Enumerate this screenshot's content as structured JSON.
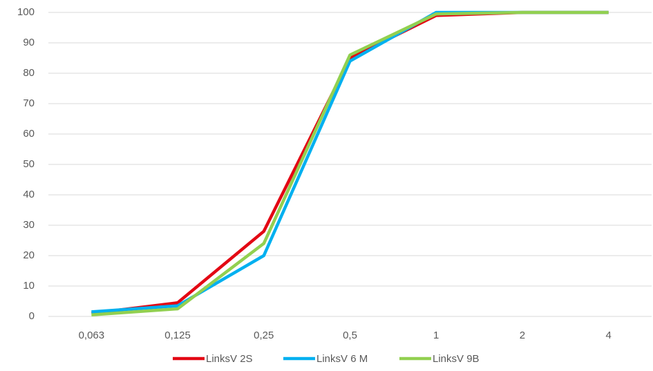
{
  "chart_data": {
    "type": "line",
    "categories": [
      "0,063",
      "0,125",
      "0,25",
      "0,5",
      "1",
      "2",
      "4"
    ],
    "series": [
      {
        "name": "LinksV 2S",
        "color": "#e30613",
        "values": [
          1,
          4.5,
          28,
          85,
          99,
          100,
          100
        ]
      },
      {
        "name": "LinksV 6 M",
        "color": "#00b0f0",
        "values": [
          1.5,
          3.5,
          20,
          84,
          100,
          100,
          100
        ]
      },
      {
        "name": "LinksV 9B",
        "color": "#92d050",
        "values": [
          0.5,
          2.5,
          24,
          86,
          99.5,
          100,
          100
        ]
      }
    ],
    "ylim": [
      0,
      100
    ],
    "yticks": [
      0,
      10,
      20,
      30,
      40,
      50,
      60,
      70,
      80,
      90,
      100
    ],
    "grid": true,
    "legend": "bottom"
  }
}
